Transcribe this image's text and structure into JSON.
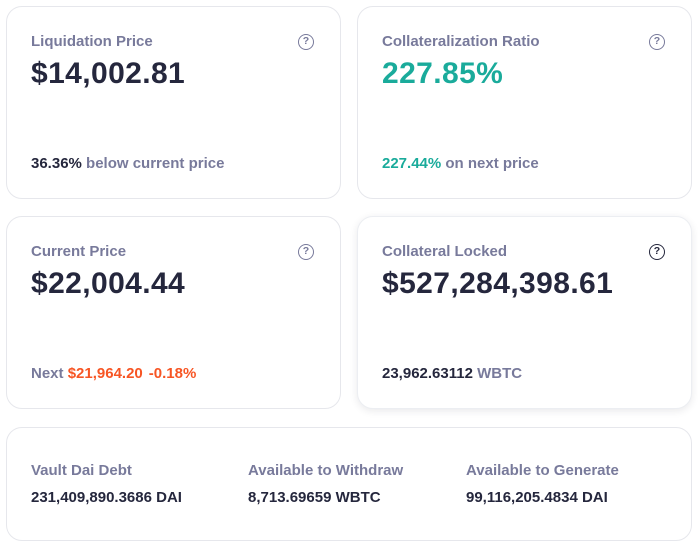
{
  "liquidation": {
    "label": "Liquidation Price",
    "value": "$14,002.81",
    "foot_pct": "36.36%",
    "foot_text": "below current price"
  },
  "collateralization": {
    "label": "Collateralization Ratio",
    "value": "227.85%",
    "foot_pct": "227.44%",
    "foot_text": "on next price"
  },
  "current_price": {
    "label": "Current Price",
    "value": "$22,004.44",
    "next_label": "Next",
    "next_value": "$21,964.20",
    "next_change": "-0.18%"
  },
  "collateral_locked": {
    "label": "Collateral Locked",
    "value": "$527,284,398.61",
    "amount": "23,962.63112",
    "token": "WBTC"
  },
  "stats": [
    {
      "label": "Vault Dai Debt",
      "value": "231,409,890.3686 DAI"
    },
    {
      "label": "Available to Withdraw",
      "value": "8,713.69659 WBTC"
    },
    {
      "label": "Available to Generate",
      "value": "99,116,205.4834 DAI"
    }
  ],
  "icons": {
    "help": "question-circle-icon"
  },
  "colors": {
    "text_primary": "#25273d",
    "text_secondary": "#787a9b",
    "positive": "#1aab9b",
    "negative": "#f75524"
  }
}
